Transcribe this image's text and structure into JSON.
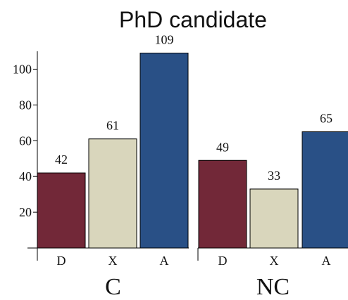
{
  "chart_data": {
    "type": "bar",
    "title": "PhD candidate",
    "xlabel": "",
    "ylabel": "",
    "ylim": [
      0,
      110
    ],
    "y_ticks": [
      20,
      40,
      60,
      80,
      100
    ],
    "grid": false,
    "groups": [
      {
        "name": "C",
        "categories": [
          "D",
          "X",
          "A"
        ],
        "values": [
          42,
          61,
          109
        ]
      },
      {
        "name": "NC",
        "categories": [
          "D",
          "X",
          "A"
        ],
        "values": [
          49,
          33,
          65
        ]
      }
    ],
    "colors": {
      "D": "#722838",
      "X": "#D9D6BC",
      "A": "#295086"
    }
  }
}
